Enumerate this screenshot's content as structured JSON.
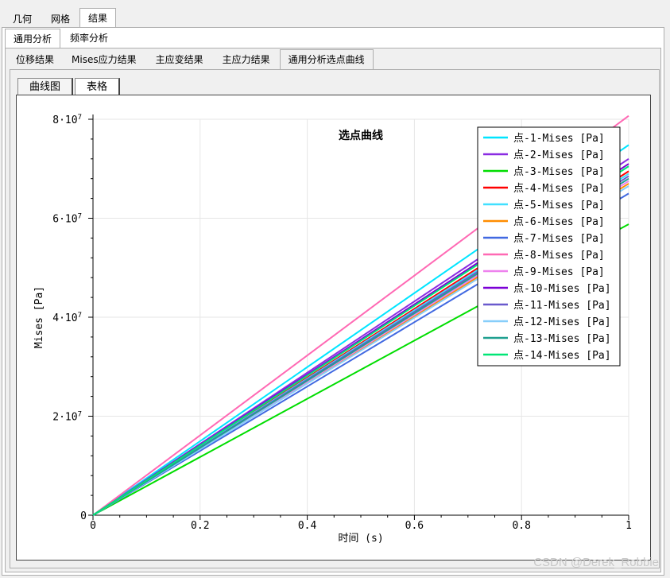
{
  "tabs_level1": [
    "几何",
    "网格",
    "结果"
  ],
  "tabs_level2": [
    "通用分析",
    "频率分析"
  ],
  "tabs_level3": [
    "位移结果",
    "Mises应力结果",
    "主应变结果",
    "主应力结果",
    "通用分析选点曲线"
  ],
  "tabs_level4": [
    "曲线图",
    "表格"
  ],
  "watermark": "CSDN @Derek_Robbie",
  "chart_data": {
    "type": "line",
    "title": "选点曲线",
    "xlabel": "时间 (s)",
    "ylabel": "Mises [Pa]",
    "xlim": [
      0,
      1
    ],
    "ylim": [
      0,
      80000000
    ],
    "x_ticks": [
      "0",
      "0.2",
      "0.4",
      "0.6",
      "0.8",
      "1"
    ],
    "y_ticks": [
      {
        "v": 0,
        "base": "0",
        "exp": ""
      },
      {
        "v": 20000000,
        "base": "2·10",
        "exp": "7"
      },
      {
        "v": 40000000,
        "base": "4·10",
        "exp": "7"
      },
      {
        "v": 60000000,
        "base": "6·10",
        "exp": "7"
      },
      {
        "v": 80000000,
        "base": "8·10",
        "exp": "7"
      }
    ],
    "grid": true,
    "legend_position": "top-right",
    "series": [
      {
        "name": "点-1-Mises [Pa]",
        "color": "#00e5ff",
        "x": [
          0,
          1
        ],
        "y": [
          0,
          74800000
        ]
      },
      {
        "name": "点-2-Mises [Pa]",
        "color": "#8a2be2",
        "x": [
          0,
          1
        ],
        "y": [
          0,
          72000000
        ]
      },
      {
        "name": "点-3-Mises [Pa]",
        "color": "#00dd00",
        "x": [
          0,
          1
        ],
        "y": [
          0,
          58800000
        ]
      },
      {
        "name": "点-4-Mises [Pa]",
        "color": "#ff0000",
        "x": [
          0,
          1
        ],
        "y": [
          0,
          69500000
        ]
      },
      {
        "name": "点-5-Mises [Pa]",
        "color": "#40e0ff",
        "x": [
          0,
          1
        ],
        "y": [
          0,
          69000000
        ]
      },
      {
        "name": "点-6-Mises [Pa]",
        "color": "#ff8c00",
        "x": [
          0,
          1
        ],
        "y": [
          0,
          67000000
        ]
      },
      {
        "name": "点-7-Mises [Pa]",
        "color": "#4169e1",
        "x": [
          0,
          1
        ],
        "y": [
          0,
          65000000
        ]
      },
      {
        "name": "点-8-Mises [Pa]",
        "color": "#ff69b4",
        "x": [
          0,
          1
        ],
        "y": [
          0,
          80700000
        ]
      },
      {
        "name": "点-9-Mises [Pa]",
        "color": "#ee82ee",
        "x": [
          0,
          1
        ],
        "y": [
          0,
          67500000
        ]
      },
      {
        "name": "点-10-Mises [Pa]",
        "color": "#7b00d6",
        "x": [
          0,
          1
        ],
        "y": [
          0,
          71000000
        ]
      },
      {
        "name": "点-11-Mises [Pa]",
        "color": "#6a5acd",
        "x": [
          0,
          1
        ],
        "y": [
          0,
          68500000
        ]
      },
      {
        "name": "点-12-Mises [Pa]",
        "color": "#87cefa",
        "x": [
          0,
          1
        ],
        "y": [
          0,
          66500000
        ]
      },
      {
        "name": "点-13-Mises [Pa]",
        "color": "#20a090",
        "x": [
          0,
          1
        ],
        "y": [
          0,
          68000000
        ]
      },
      {
        "name": "点-14-Mises [Pa]",
        "color": "#00e676",
        "x": [
          0,
          1
        ],
        "y": [
          0,
          70500000
        ]
      }
    ]
  }
}
